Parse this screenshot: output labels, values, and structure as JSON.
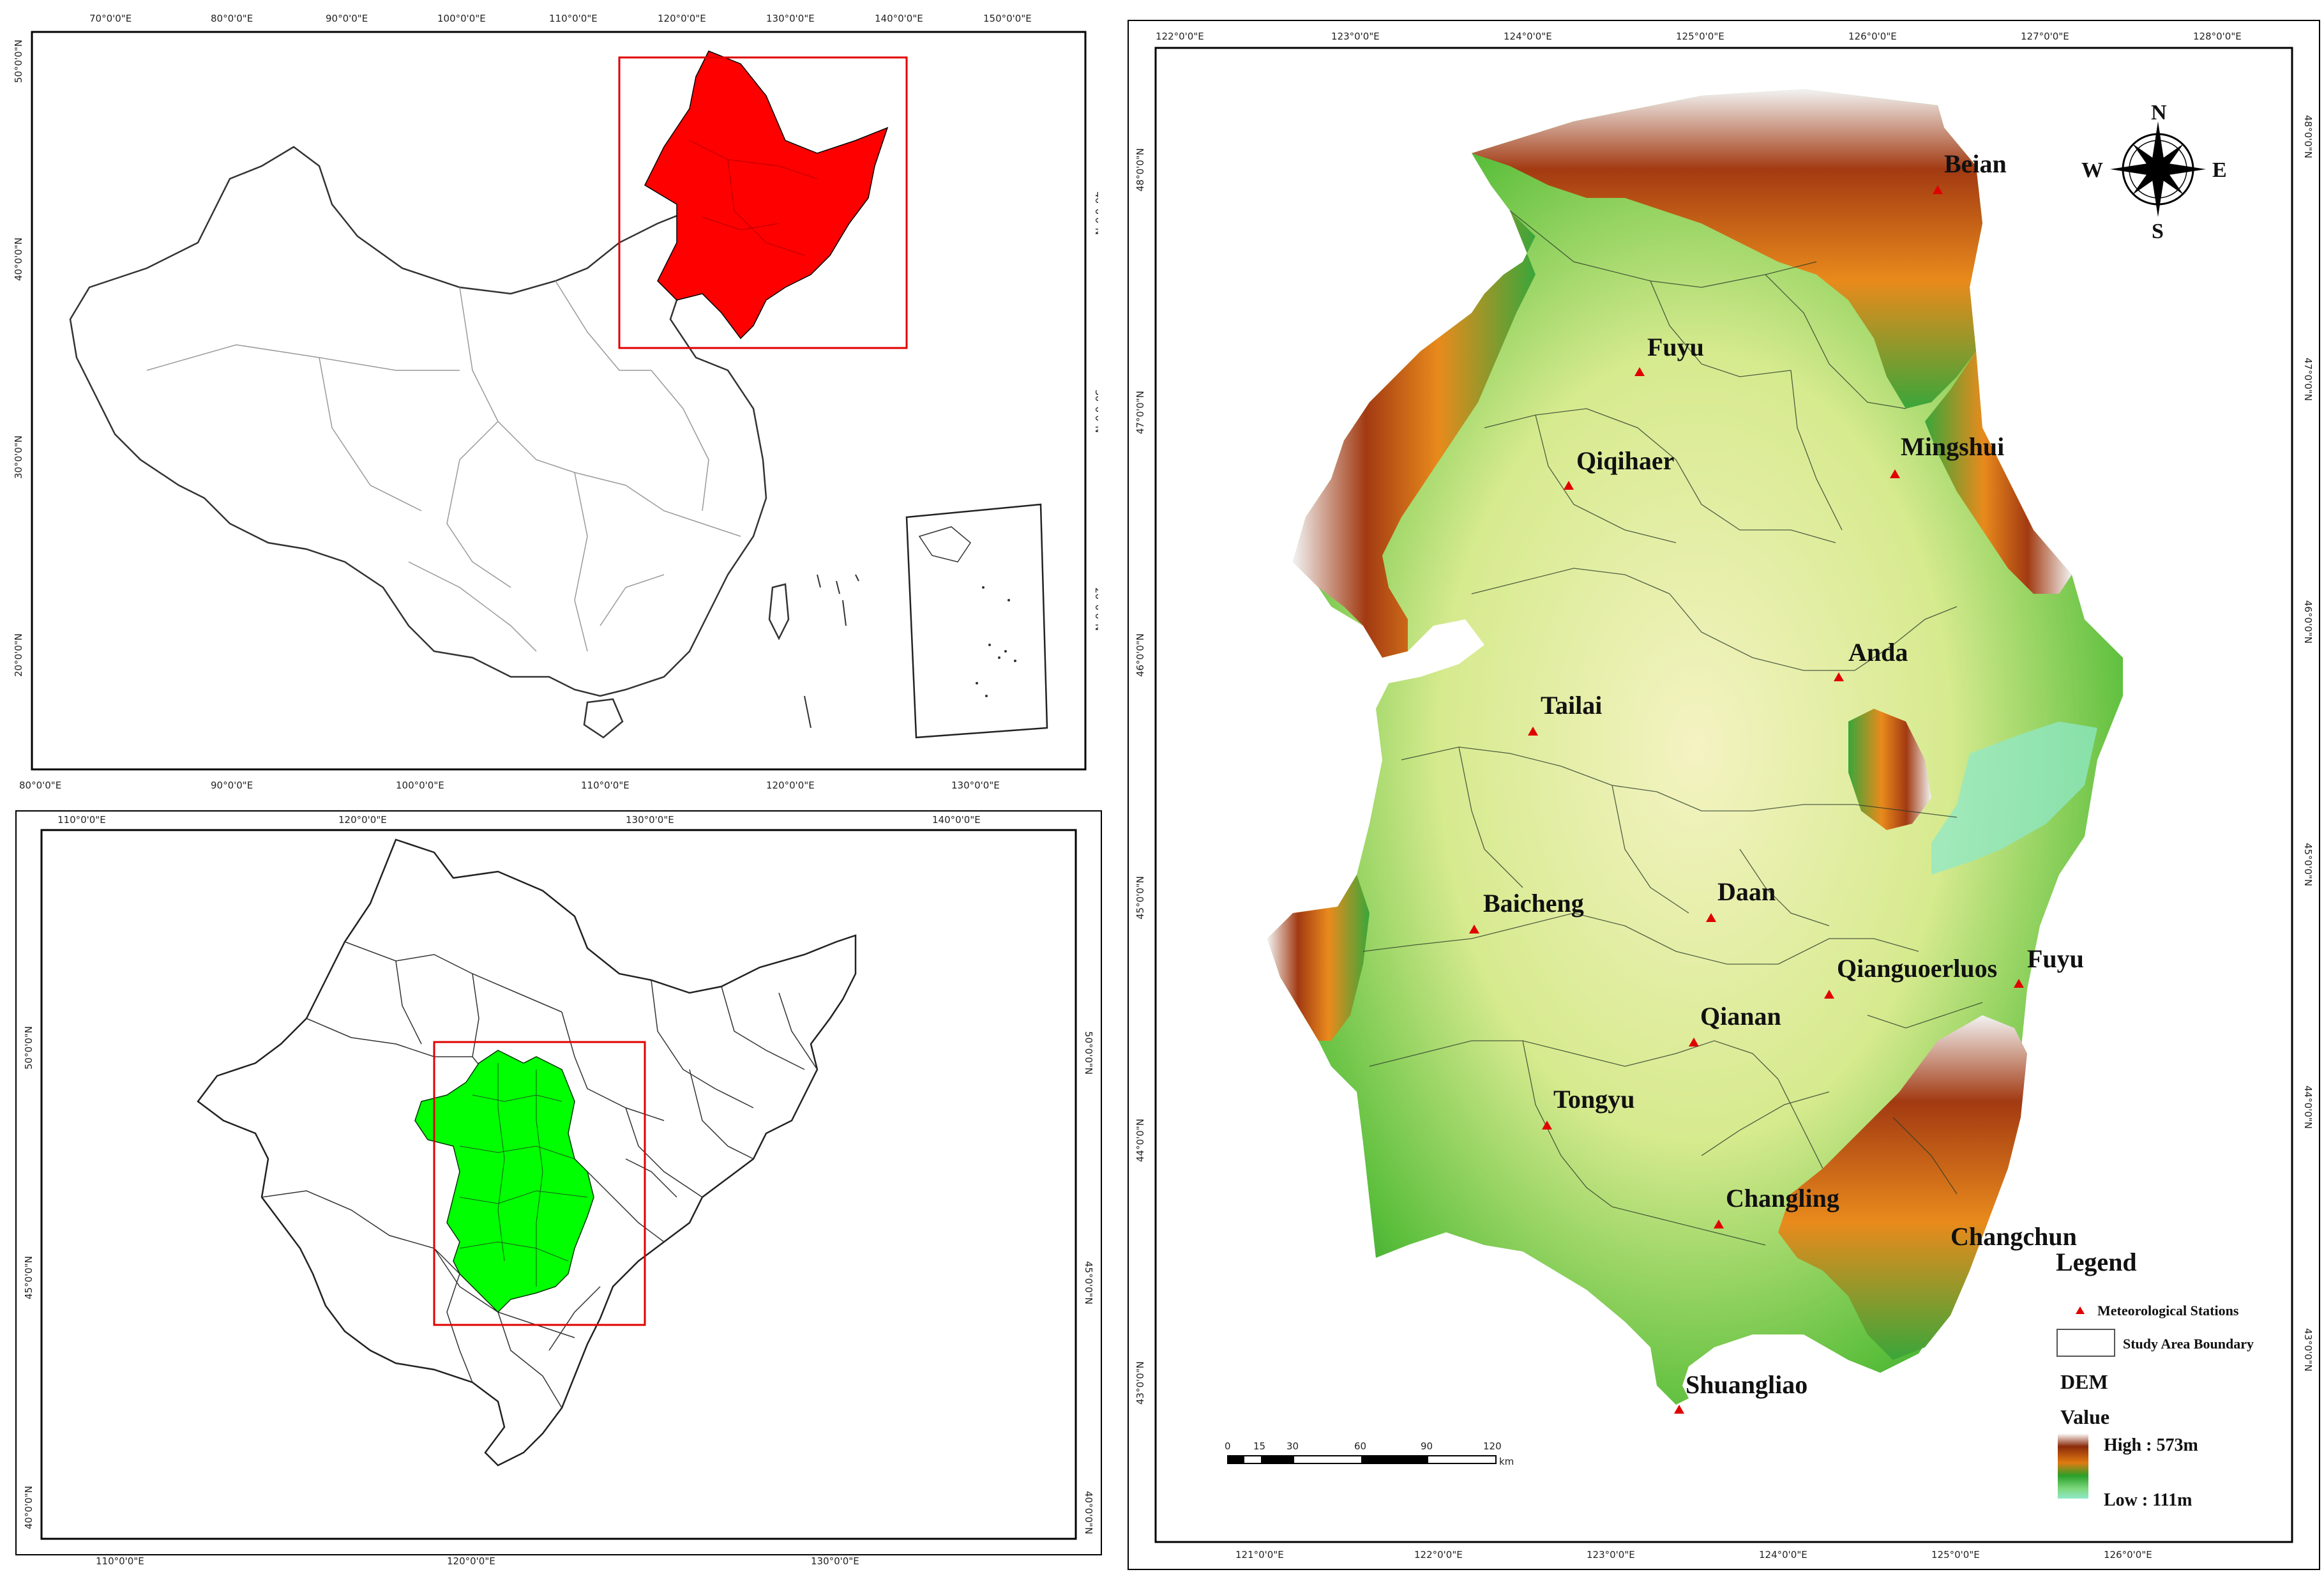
{
  "colors": {
    "northeast_highlight": "#ff0000",
    "study_area_highlight": "#00ff00",
    "station_marker": "#e00000",
    "dem_high": "#ffffff",
    "dem_mid_high": "#8b2a0a",
    "dem_mid": "#e07a10",
    "dem_mid_low": "#2aa02a",
    "dem_low": "#8fe8c8"
  },
  "panel_china": {
    "x_ticks_top": [
      "70°0'0\"E",
      "80°0'0\"E",
      "90°0'0\"E",
      "100°0'0\"E",
      "110°0'0\"E",
      "120°0'0\"E",
      "130°0'0\"E",
      "140°0'0\"E",
      "150°0'0\"E"
    ],
    "x_ticks_bottom": [
      "80°0'0\"E",
      "90°0'0\"E",
      "100°0'0\"E",
      "110°0'0\"E",
      "120°0'0\"E",
      "130°0'0\"E"
    ],
    "y_ticks_left": [
      "50°0'0\"N",
      "40°0'0\"N",
      "30°0'0\"N",
      "20°0'0\"N"
    ],
    "y_ticks_right": [
      "40°0'0\"N",
      "30°0'0\"N",
      "20°0'0\"N"
    ]
  },
  "panel_northeast": {
    "x_ticks_top": [
      "110°0'0\"E",
      "120°0'0\"E",
      "130°0'0\"E",
      "140°0'0\"E"
    ],
    "x_ticks_bottom": [
      "110°0'0\"E",
      "120°0'0\"E",
      "130°0'0\"E"
    ],
    "y_ticks_left": [
      "50°0'0\"N",
      "45°0'0\"N",
      "40°0'0\"N"
    ],
    "y_ticks_right": [
      "50°0'0\"N",
      "45°0'0\"N",
      "40°0'0\"N"
    ]
  },
  "panel_study": {
    "x_ticks_top": [
      "122°0'0\"E",
      "123°0'0\"E",
      "124°0'0\"E",
      "125°0'0\"E",
      "126°0'0\"E",
      "127°0'0\"E",
      "128°0'0\"E"
    ],
    "x_ticks_bottom": [
      "121°0'0\"E",
      "122°0'0\"E",
      "123°0'0\"E",
      "124°0'0\"E",
      "125°0'0\"E",
      "126°0'0\"E"
    ],
    "y_ticks_left": [
      "48°0'0\"N",
      "47°0'0\"N",
      "46°0'0\"N",
      "45°0'0\"N",
      "44°0'0\"N",
      "43°0'0\"N"
    ],
    "y_ticks_right": [
      "48°0'0\"N",
      "47°0'0\"N",
      "46°0'0\"N",
      "45°0'0\"N",
      "44°0'0\"N",
      "43°0'0\"N"
    ],
    "stations": [
      "Beian",
      "Fuyu",
      "Mingshui",
      "Qiqihaer",
      "Anda",
      "Tailai",
      "Baicheng",
      "Daan",
      "Qianguoerluos",
      "Fuyu",
      "Qianan",
      "Tongyu",
      "Changling",
      "Changchun",
      "Shuangliao"
    ],
    "compass": {
      "n": "N",
      "s": "S",
      "e": "E",
      "w": "W"
    },
    "scale_bar": {
      "labels": [
        "0",
        "15",
        "30",
        "60",
        "90",
        "120"
      ],
      "unit": "km"
    },
    "legend": {
      "title": "Legend",
      "stations_label": "Meteorological Stations",
      "boundary_label": "Study Area Boundary",
      "dem_title": "DEM",
      "value_label": "Value",
      "high_label": "High : 573m",
      "low_label": "Low : 111m"
    }
  }
}
